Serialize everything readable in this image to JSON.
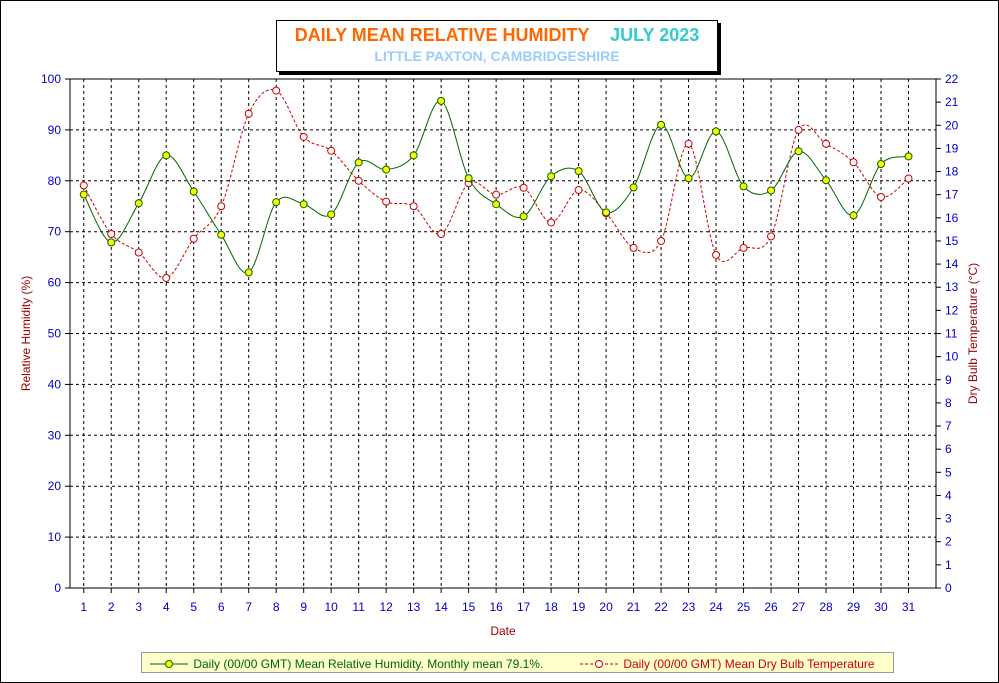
{
  "title": {
    "main": "DAILY MEAN RELATIVE HUMIDITY",
    "month": "JULY 2023",
    "subtitle": "LITTLE PAXTON, CAMBRIDGESHIRE",
    "colors": {
      "main": "#ff6600",
      "month": "#33cccc",
      "subtitle": "#99ccff"
    }
  },
  "chart_data": {
    "type": "line",
    "xlabel": "Date",
    "ylabel_left": "Relative Humidity (%)",
    "ylabel_right": "Dry Bulb Temperature (°C)",
    "x": [
      1,
      2,
      3,
      4,
      5,
      6,
      7,
      8,
      9,
      10,
      11,
      12,
      13,
      14,
      15,
      16,
      17,
      18,
      19,
      20,
      21,
      22,
      23,
      24,
      25,
      26,
      27,
      28,
      29,
      30,
      31
    ],
    "ylim_left": [
      0,
      100
    ],
    "yticks_left": [
      0,
      10,
      20,
      30,
      40,
      50,
      60,
      70,
      80,
      90,
      100
    ],
    "ylim_right": [
      0,
      22
    ],
    "yticks_right": [
      0,
      1,
      2,
      3,
      4,
      5,
      6,
      7,
      8,
      9,
      10,
      11,
      12,
      13,
      14,
      15,
      16,
      17,
      18,
      19,
      20,
      21,
      22
    ],
    "grid": true,
    "legend_position": "bottom",
    "series": [
      {
        "name": "Daily (00/00 GMT) Mean Relative Humidity. Monthly mean 79.1%.",
        "axis": "left",
        "color": "#006600",
        "marker_color": "#ffff00",
        "line_style": "solid",
        "values": [
          77.3,
          67.9,
          75.6,
          85.0,
          77.9,
          69.4,
          62.0,
          75.8,
          75.4,
          73.4,
          83.6,
          82.2,
          85.0,
          95.7,
          80.5,
          75.4,
          73.0,
          80.9,
          81.9,
          73.8,
          78.7,
          91.0,
          80.5,
          89.7,
          78.9,
          78.1,
          85.8,
          80.1,
          73.2,
          83.3,
          84.8
        ]
      },
      {
        "name": "Daily (00/00 GMT) Mean Dry Bulb Temperature",
        "axis": "right",
        "color": "#cc0000",
        "marker_color": "#ffffff",
        "line_style": "dashed",
        "values": [
          17.4,
          15.3,
          14.5,
          13.4,
          15.1,
          16.5,
          20.5,
          21.5,
          19.5,
          18.9,
          17.6,
          16.7,
          16.5,
          15.3,
          17.5,
          17.0,
          17.3,
          15.8,
          17.2,
          16.2,
          14.7,
          15.0,
          19.2,
          14.4,
          14.7,
          15.2,
          19.8,
          19.2,
          18.4,
          16.9,
          17.7
        ]
      }
    ]
  },
  "colors": {
    "axis_text": "#0000cc",
    "axis_label": "#990000",
    "legend_bg": "#ffffcc"
  }
}
